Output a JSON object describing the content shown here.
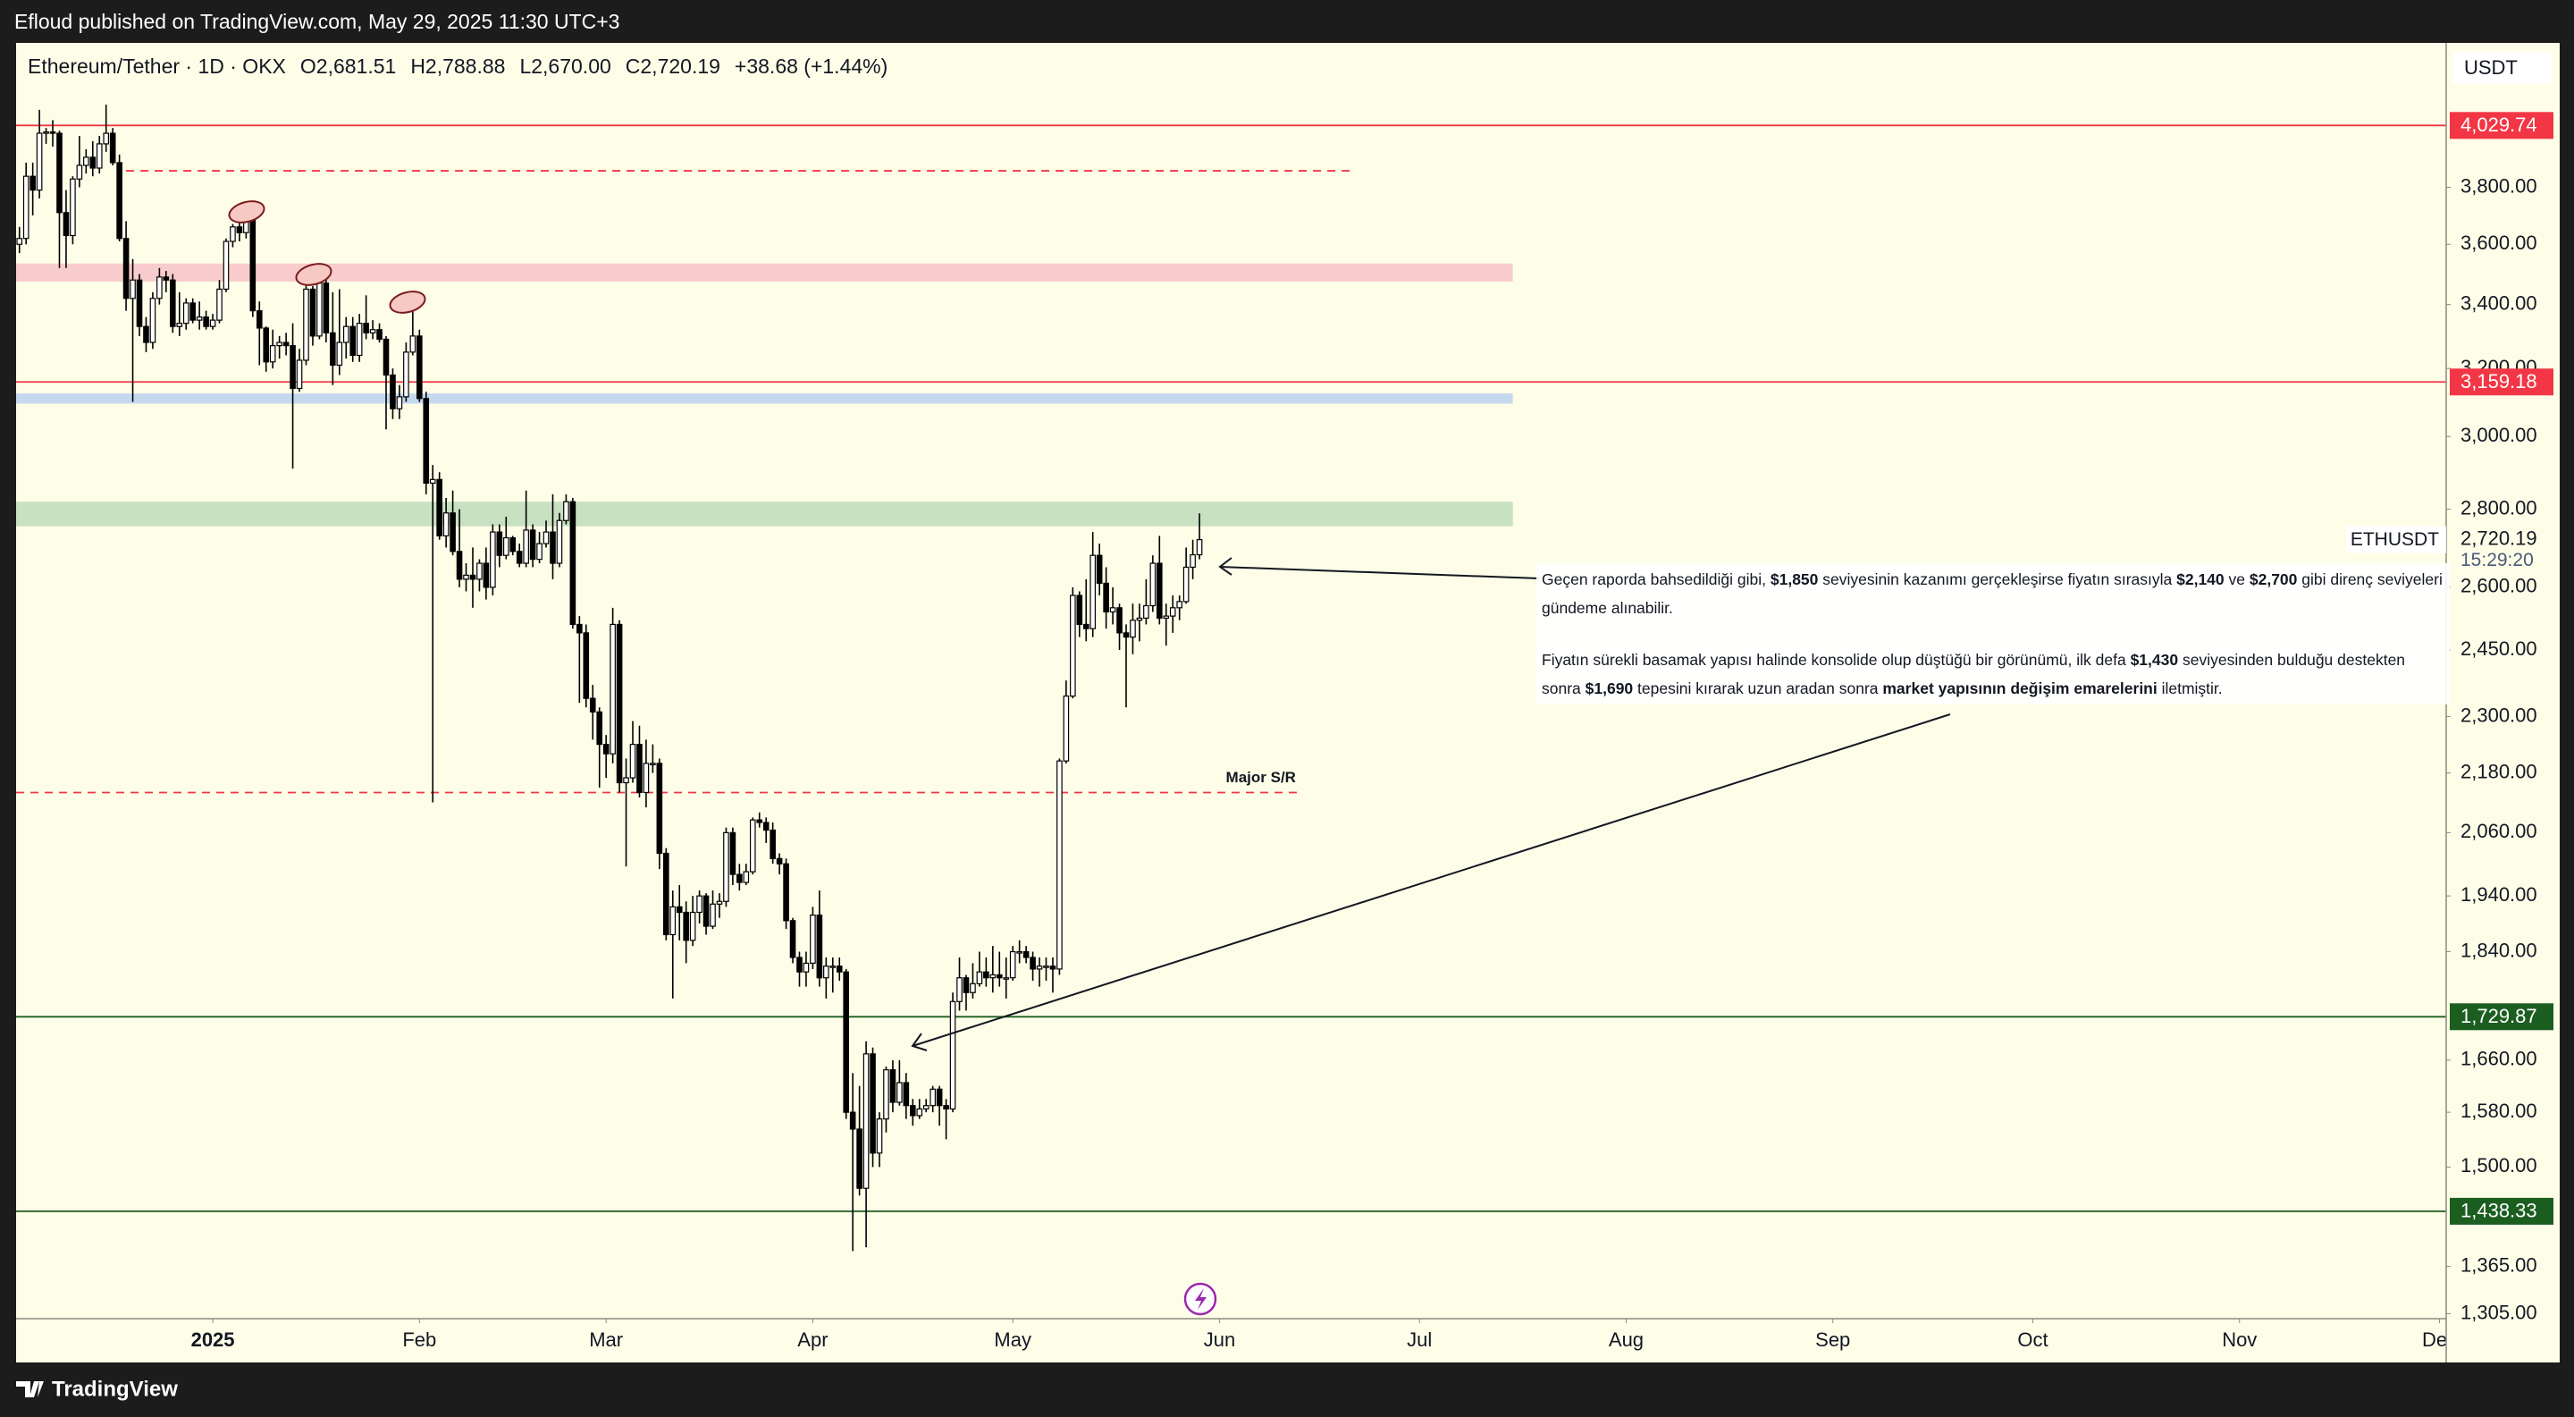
{
  "publisher": "Efloud published on TradingView.com, May 29, 2025 11:30 UTC+3",
  "footer": "TradingView",
  "chart_data": {
    "type": "candlestick",
    "header": {
      "symbol": "Ethereum/Tether · 1D · OKX",
      "open": "O2,681.51",
      "high": "H2,788.88",
      "low": "L2,670.00",
      "close": "C2,720.19",
      "change": "+38.68 (+1.44%)"
    },
    "currency": "USDT",
    "log_scale": true,
    "up_color": "#ffffff",
    "down_color": "#000000",
    "xlim": [
      -0.5,
      364
    ],
    "ylim": [
      1299,
      4358
    ],
    "xticks": [
      {
        "value": 29,
        "label": "2025"
      },
      {
        "value": 60,
        "label": "Feb"
      },
      {
        "value": 88,
        "label": "Mar"
      },
      {
        "value": 119,
        "label": "Apr"
      },
      {
        "value": 149,
        "label": "May"
      },
      {
        "value": 180,
        "label": "Jun"
      },
      {
        "value": 210,
        "label": "Jul"
      },
      {
        "value": 241,
        "label": "Aug"
      },
      {
        "value": 272,
        "label": "Sep"
      },
      {
        "value": 302,
        "label": "Oct"
      },
      {
        "value": 333,
        "label": "Nov"
      },
      {
        "value": 363,
        "label": "Dec"
      }
    ],
    "yticks": [
      {
        "value": 1305,
        "label": "1,305.00"
      },
      {
        "value": 1365,
        "label": "1,365.00"
      },
      {
        "value": 1500,
        "label": "1,500.00"
      },
      {
        "value": 1580,
        "label": "1,580.00"
      },
      {
        "value": 1660,
        "label": "1,660.00"
      },
      {
        "value": 1840,
        "label": "1,840.00"
      },
      {
        "value": 1940,
        "label": "1,940.00"
      },
      {
        "value": 2060,
        "label": "2,060.00"
      },
      {
        "value": 2180,
        "label": "2,180.00"
      },
      {
        "value": 2300,
        "label": "2,300.00"
      },
      {
        "value": 2450,
        "label": "2,450.00"
      },
      {
        "value": 2600,
        "label": "2,600.00"
      },
      {
        "value": 2800,
        "label": "2,800.00"
      },
      {
        "value": 3000,
        "label": "3,000.00"
      },
      {
        "value": 3200,
        "label": "3,200.00"
      },
      {
        "value": 3400,
        "label": "3,400.00"
      },
      {
        "value": 3600,
        "label": "3,600.00"
      },
      {
        "value": 3800,
        "label": "3,800.00"
      }
    ],
    "levels": [
      {
        "value": 4029.74,
        "label": "4,029.74",
        "color": "#f23645"
      },
      {
        "value": 3159.18,
        "label": "3,159.18",
        "color": "#f23645"
      },
      {
        "value": 1729.87,
        "label": "1,729.87",
        "color": "#1b5e20"
      },
      {
        "value": 1438.33,
        "label": "1,438.33",
        "color": "#1b5e20"
      }
    ],
    "zones": [
      {
        "from": 3475,
        "to": 3535,
        "start": -0.5,
        "end": 224,
        "color": "#f8cccc"
      },
      {
        "from": 3095,
        "to": 3125,
        "start": -0.5,
        "end": 224,
        "color": "#c5d9ee"
      },
      {
        "from": 2755,
        "to": 2820,
        "start": -0.5,
        "end": 224,
        "color": "#c8e1c0"
      }
    ],
    "dashed_lines": [
      {
        "value": 3860,
        "start": 16,
        "end": 200,
        "color": "#f23645"
      },
      {
        "value": 2140,
        "start": -0.5,
        "end": 192,
        "color": "#f23645",
        "label": "Major S/R"
      }
    ],
    "last_price": {
      "name": "ETHUSDT",
      "value": 2720.19,
      "label": "2,720.19",
      "countdown": "15:29:20"
    },
    "note": [
      [
        {
          "text": "Geçen raporda bahsedildiği gibi, ",
          "bold": false
        },
        {
          "text": "$1,850",
          "bold": true
        },
        {
          "text": " seviyesinin kazanımı gerçekleşirse fiyatın sırasıyla ",
          "bold": false
        },
        {
          "text": "$2,140",
          "bold": true
        },
        {
          "text": " ve ",
          "bold": false
        },
        {
          "text": "$2,700",
          "bold": true
        },
        {
          "text": " gibi direnç seviyeleri gündeme alınabilir.",
          "bold": false
        }
      ],
      [
        {
          "text": "Fiyatın sürekli basamak yapısı halinde konsolide olup düştüğü bir görünümü, ilk defa ",
          "bold": false
        },
        {
          "text": "$1,430",
          "bold": true
        },
        {
          "text": " seviyesinden bulduğu destekten sonra ",
          "bold": false
        },
        {
          "text": "$1,690",
          "bold": true
        },
        {
          "text": " tepesini kırarak uzun aradan sonra ",
          "bold": false
        },
        {
          "text": "market yapısının değişim emarelerini",
          "bold": true
        },
        {
          "text": " iletmiştir.",
          "bold": false
        }
      ]
    ],
    "ohlc": [
      [
        3600,
        3660,
        3570,
        3620
      ],
      [
        3620,
        3890,
        3600,
        3840
      ],
      [
        3840,
        3890,
        3700,
        3790
      ],
      [
        3790,
        4090,
        3760,
        4000
      ],
      [
        4000,
        4020,
        3960,
        4005
      ],
      [
        4005,
        4050,
        3950,
        4000
      ],
      [
        4000,
        4010,
        3520,
        3710
      ],
      [
        3710,
        3790,
        3520,
        3630
      ],
      [
        3630,
        3840,
        3600,
        3830
      ],
      [
        3830,
        3990,
        3800,
        3880
      ],
      [
        3880,
        3940,
        3850,
        3910
      ],
      [
        3910,
        3970,
        3840,
        3870
      ],
      [
        3870,
        3990,
        3850,
        3960
      ],
      [
        3960,
        4110,
        3930,
        4000
      ],
      [
        4000,
        4020,
        3880,
        3890
      ],
      [
        3890,
        3920,
        3610,
        3620
      ],
      [
        3620,
        3680,
        3380,
        3420
      ],
      [
        3420,
        3550,
        3100,
        3480
      ],
      [
        3480,
        3500,
        3300,
        3330
      ],
      [
        3330,
        3360,
        3250,
        3280
      ],
      [
        3280,
        3440,
        3260,
        3420
      ],
      [
        3420,
        3520,
        3400,
        3490
      ],
      [
        3490,
        3510,
        3440,
        3480
      ],
      [
        3480,
        3500,
        3310,
        3330
      ],
      [
        3330,
        3440,
        3300,
        3340
      ],
      [
        3340,
        3420,
        3320,
        3405
      ],
      [
        3405,
        3420,
        3340,
        3350
      ],
      [
        3350,
        3410,
        3320,
        3360
      ],
      [
        3360,
        3380,
        3320,
        3330
      ],
      [
        3330,
        3370,
        3320,
        3350
      ],
      [
        3350,
        3480,
        3340,
        3450
      ],
      [
        3450,
        3620,
        3440,
        3610
      ],
      [
        3610,
        3670,
        3590,
        3660
      ],
      [
        3660,
        3680,
        3610,
        3640
      ],
      [
        3640,
        3740,
        3620,
        3690
      ],
      [
        3690,
        3700,
        3360,
        3380
      ],
      [
        3380,
        3410,
        3210,
        3325
      ],
      [
        3325,
        3330,
        3190,
        3220
      ],
      [
        3220,
        3320,
        3200,
        3270
      ],
      [
        3270,
        3300,
        3230,
        3280
      ],
      [
        3280,
        3310,
        3240,
        3270
      ],
      [
        3270,
        3340,
        2910,
        3140
      ],
      [
        3140,
        3260,
        3130,
        3225
      ],
      [
        3225,
        3470,
        3210,
        3450
      ],
      [
        3450,
        3460,
        3270,
        3300
      ],
      [
        3300,
        3520,
        3290,
        3470
      ],
      [
        3470,
        3530,
        3280,
        3310
      ],
      [
        3310,
        3440,
        3150,
        3210
      ],
      [
        3210,
        3450,
        3180,
        3280
      ],
      [
        3280,
        3360,
        3230,
        3330
      ],
      [
        3330,
        3360,
        3220,
        3240
      ],
      [
        3240,
        3370,
        3220,
        3340
      ],
      [
        3340,
        3430,
        3290,
        3310
      ],
      [
        3310,
        3350,
        3290,
        3320
      ],
      [
        3320,
        3340,
        3280,
        3290
      ],
      [
        3290,
        3300,
        3020,
        3180
      ],
      [
        3180,
        3200,
        3050,
        3080
      ],
      [
        3080,
        3150,
        3050,
        3115
      ],
      [
        3115,
        3280,
        3100,
        3250
      ],
      [
        3250,
        3430,
        3240,
        3300
      ],
      [
        3300,
        3320,
        3100,
        3110
      ],
      [
        3110,
        3130,
        2840,
        2870
      ],
      [
        2870,
        2920,
        2120,
        2880
      ],
      [
        2880,
        2900,
        2720,
        2730
      ],
      [
        2730,
        2830,
        2700,
        2790
      ],
      [
        2790,
        2850,
        2680,
        2690
      ],
      [
        2690,
        2800,
        2600,
        2620
      ],
      [
        2620,
        2660,
        2590,
        2630
      ],
      [
        2630,
        2700,
        2550,
        2620
      ],
      [
        2620,
        2670,
        2590,
        2660
      ],
      [
        2660,
        2700,
        2570,
        2600
      ],
      [
        2600,
        2760,
        2580,
        2740
      ],
      [
        2740,
        2760,
        2650,
        2680
      ],
      [
        2680,
        2780,
        2670,
        2725
      ],
      [
        2725,
        2730,
        2680,
        2690
      ],
      [
        2690,
        2710,
        2650,
        2660
      ],
      [
        2660,
        2850,
        2650,
        2745
      ],
      [
        2745,
        2760,
        2650,
        2670
      ],
      [
        2670,
        2740,
        2660,
        2710
      ],
      [
        2710,
        2770,
        2700,
        2740
      ],
      [
        2740,
        2840,
        2620,
        2660
      ],
      [
        2660,
        2790,
        2650,
        2770
      ],
      [
        2770,
        2840,
        2760,
        2820
      ],
      [
        2820,
        2830,
        2500,
        2510
      ],
      [
        2510,
        2530,
        2330,
        2490
      ],
      [
        2490,
        2510,
        2320,
        2340
      ],
      [
        2340,
        2370,
        2250,
        2310
      ],
      [
        2310,
        2320,
        2150,
        2240
      ],
      [
        2240,
        2260,
        2170,
        2220
      ],
      [
        2220,
        2550,
        2200,
        2510
      ],
      [
        2510,
        2520,
        2140,
        2160
      ],
      [
        2160,
        2210,
        1995,
        2170
      ],
      [
        2170,
        2290,
        2160,
        2240
      ],
      [
        2240,
        2280,
        2130,
        2140
      ],
      [
        2140,
        2250,
        2110,
        2200
      ],
      [
        2200,
        2240,
        2180,
        2200
      ],
      [
        2200,
        2210,
        1990,
        2020
      ],
      [
        2020,
        2030,
        1860,
        1870
      ],
      [
        1870,
        1950,
        1760,
        1920
      ],
      [
        1920,
        1960,
        1860,
        1910
      ],
      [
        1910,
        1930,
        1820,
        1860
      ],
      [
        1860,
        1940,
        1850,
        1910
      ],
      [
        1910,
        1950,
        1890,
        1940
      ],
      [
        1940,
        1945,
        1870,
        1885
      ],
      [
        1885,
        1950,
        1880,
        1925
      ],
      [
        1925,
        1945,
        1900,
        1930
      ],
      [
        1930,
        2070,
        1920,
        2060
      ],
      [
        2060,
        2070,
        1960,
        1980
      ],
      [
        1980,
        2000,
        1950,
        1965
      ],
      [
        1965,
        2000,
        1960,
        1985
      ],
      [
        1985,
        2090,
        1980,
        2085
      ],
      [
        2085,
        2100,
        2070,
        2080
      ],
      [
        2080,
        2090,
        2040,
        2065
      ],
      [
        2065,
        2080,
        2000,
        2010
      ],
      [
        2010,
        2020,
        1980,
        2000
      ],
      [
        2000,
        2010,
        1880,
        1895
      ],
      [
        1895,
        1900,
        1820,
        1830
      ],
      [
        1830,
        1840,
        1780,
        1805
      ],
      [
        1805,
        1840,
        1780,
        1820
      ],
      [
        1820,
        1920,
        1810,
        1905
      ],
      [
        1905,
        1950,
        1780,
        1795
      ],
      [
        1795,
        1830,
        1760,
        1815
      ],
      [
        1815,
        1830,
        1770,
        1815
      ],
      [
        1815,
        1830,
        1790,
        1805
      ],
      [
        1805,
        1810,
        1570,
        1580
      ],
      [
        1580,
        1640,
        1385,
        1555
      ],
      [
        1555,
        1620,
        1460,
        1470
      ],
      [
        1470,
        1690,
        1390,
        1670
      ],
      [
        1670,
        1680,
        1500,
        1520
      ],
      [
        1520,
        1580,
        1500,
        1570
      ],
      [
        1570,
        1650,
        1550,
        1645
      ],
      [
        1645,
        1660,
        1580,
        1595
      ],
      [
        1595,
        1660,
        1590,
        1625
      ],
      [
        1625,
        1640,
        1570,
        1590
      ],
      [
        1590,
        1600,
        1560,
        1575
      ],
      [
        1575,
        1600,
        1570,
        1585
      ],
      [
        1585,
        1600,
        1580,
        1590
      ],
      [
        1590,
        1620,
        1580,
        1615
      ],
      [
        1615,
        1620,
        1560,
        1590
      ],
      [
        1590,
        1600,
        1540,
        1585
      ],
      [
        1585,
        1770,
        1580,
        1755
      ],
      [
        1755,
        1830,
        1740,
        1795
      ],
      [
        1795,
        1800,
        1740,
        1770
      ],
      [
        1770,
        1820,
        1760,
        1785
      ],
      [
        1785,
        1840,
        1780,
        1805
      ],
      [
        1805,
        1830,
        1780,
        1795
      ],
      [
        1795,
        1850,
        1770,
        1800
      ],
      [
        1800,
        1840,
        1780,
        1795
      ],
      [
        1795,
        1830,
        1760,
        1795
      ],
      [
        1795,
        1850,
        1790,
        1840
      ],
      [
        1840,
        1860,
        1820,
        1840
      ],
      [
        1840,
        1850,
        1820,
        1830
      ],
      [
        1830,
        1840,
        1790,
        1810
      ],
      [
        1810,
        1830,
        1780,
        1815
      ],
      [
        1815,
        1830,
        1790,
        1815
      ],
      [
        1815,
        1830,
        1770,
        1810
      ],
      [
        1810,
        2210,
        1800,
        2205
      ],
      [
        2205,
        2380,
        2200,
        2345
      ],
      [
        2345,
        2600,
        2340,
        2580
      ],
      [
        2580,
        2590,
        2480,
        2510
      ],
      [
        2510,
        2620,
        2470,
        2500
      ],
      [
        2500,
        2740,
        2480,
        2680
      ],
      [
        2680,
        2710,
        2580,
        2610
      ],
      [
        2610,
        2650,
        2500,
        2540
      ],
      [
        2540,
        2600,
        2510,
        2550
      ],
      [
        2550,
        2560,
        2450,
        2490
      ],
      [
        2490,
        2510,
        2320,
        2480
      ],
      [
        2480,
        2560,
        2440,
        2520
      ],
      [
        2520,
        2560,
        2470,
        2525
      ],
      [
        2525,
        2620,
        2510,
        2555
      ],
      [
        2555,
        2680,
        2540,
        2660
      ],
      [
        2660,
        2730,
        2510,
        2525
      ],
      [
        2525,
        2560,
        2460,
        2530
      ],
      [
        2530,
        2580,
        2490,
        2550
      ],
      [
        2550,
        2580,
        2520,
        2565
      ],
      [
        2565,
        2700,
        2560,
        2650
      ],
      [
        2650,
        2720,
        2620,
        2681.51
      ],
      [
        2681.51,
        2788.88,
        2670,
        2720.19
      ]
    ]
  }
}
